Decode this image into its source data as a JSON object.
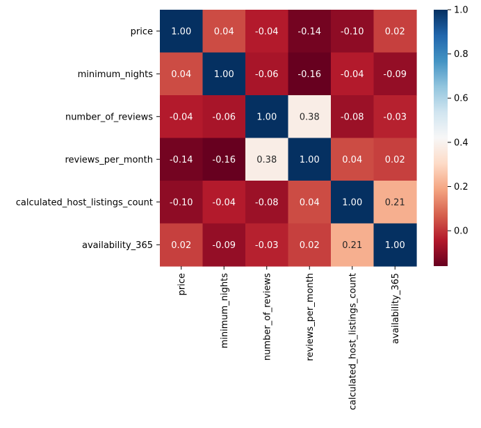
{
  "chart_data": {
    "type": "heatmap",
    "title": "",
    "xlabel": "",
    "ylabel": "",
    "rows": [
      "price",
      "minimum_nights",
      "number_of_reviews",
      "reviews_per_month",
      "calculated_host_listings_count",
      "availability_365"
    ],
    "columns": [
      "price",
      "minimum_nights",
      "number_of_reviews",
      "reviews_per_month",
      "calculated_host_listings_count",
      "availability_365"
    ],
    "values": [
      [
        1.0,
        0.04,
        -0.04,
        -0.14,
        -0.1,
        0.02
      ],
      [
        0.04,
        1.0,
        -0.06,
        -0.16,
        -0.04,
        -0.09
      ],
      [
        -0.04,
        -0.06,
        1.0,
        0.38,
        -0.08,
        -0.03
      ],
      [
        -0.14,
        -0.16,
        0.38,
        1.0,
        0.04,
        0.02
      ],
      [
        -0.1,
        -0.04,
        -0.08,
        0.04,
        1.0,
        0.21
      ],
      [
        0.02,
        -0.09,
        -0.03,
        0.02,
        0.21,
        1.0
      ]
    ],
    "value_format": "2 decimals",
    "colormap": "RdBu",
    "color_range": [
      -0.16,
      1.0
    ],
    "colorbar": {
      "ticks": [
        0.0,
        0.2,
        0.4,
        0.6,
        0.8,
        1.0
      ],
      "tick_labels": [
        "0.0",
        "0.2",
        "0.4",
        "0.6",
        "0.8",
        "1.0"
      ],
      "placement": "right"
    }
  }
}
